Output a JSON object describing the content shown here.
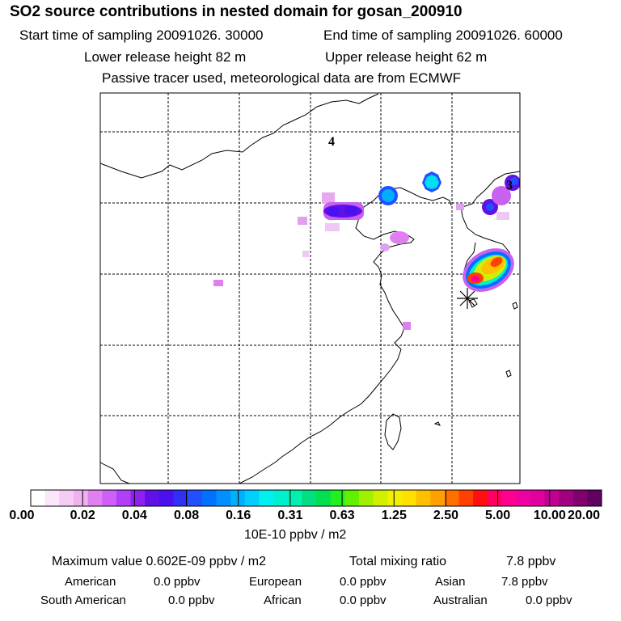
{
  "header": {
    "title": "SO2 source contributions in nested domain for gosan_200910",
    "start_label": "Start time of sampling 20091026. 30000",
    "end_label": "End time of sampling 20091026. 60000",
    "lower_label": "Lower release height   82 m",
    "upper_label": "Upper release height   62 m",
    "tracer_note": "Passive tracer used, meteorological data are from ECMWF"
  },
  "map": {
    "region_markers": [
      "4",
      "3"
    ],
    "receptor_icon": "star-asterisk-icon"
  },
  "colorbar": {
    "unit": "10E-10 ppbv / m2",
    "tick_labels": [
      "0.00",
      "0.02",
      "0.04",
      "0.08",
      "0.16",
      "0.31",
      "0.63",
      "1.25",
      "2.50",
      "5.00",
      "10.00",
      "20.00"
    ],
    "colors": [
      "#ffffff",
      "#fbe6fb",
      "#f5ccf5",
      "#efb2ef",
      "#e080f0",
      "#d060f5",
      "#b040f5",
      "#9020f0",
      "#6010e8",
      "#4a10f0",
      "#3030f5",
      "#2050ff",
      "#0070ff",
      "#0090ff",
      "#00b0ff",
      "#00d0ff",
      "#00f0f0",
      "#00f0d0",
      "#00f0b0",
      "#00e080",
      "#00e050",
      "#20f020",
      "#60f000",
      "#a0f000",
      "#d0f000",
      "#f0f000",
      "#ffe000",
      "#ffc000",
      "#ffa000",
      "#ff7000",
      "#ff4000",
      "#ff1010",
      "#ff0060",
      "#ff0090",
      "#f000a0",
      "#e000a0",
      "#c00090",
      "#a00080",
      "#800070",
      "#600060"
    ]
  },
  "footer": {
    "max_label": "Maximum value  0.602E-09 ppbv / m2",
    "total_label": "Total mixing ratio",
    "total_value": "7.8 ppbv",
    "american_label": "American",
    "american_value": "0.0 ppbv",
    "european_label": "European",
    "european_value": "0.0 ppbv",
    "asian_label": "Asian",
    "asian_value": "7.8 ppbv",
    "southamerican_label": "South American",
    "southamerican_value": "0.0 ppbv",
    "african_label": "African",
    "african_value": "0.0 ppbv",
    "australian_label": "Australian",
    "australian_value": "0.0 ppbv"
  }
}
